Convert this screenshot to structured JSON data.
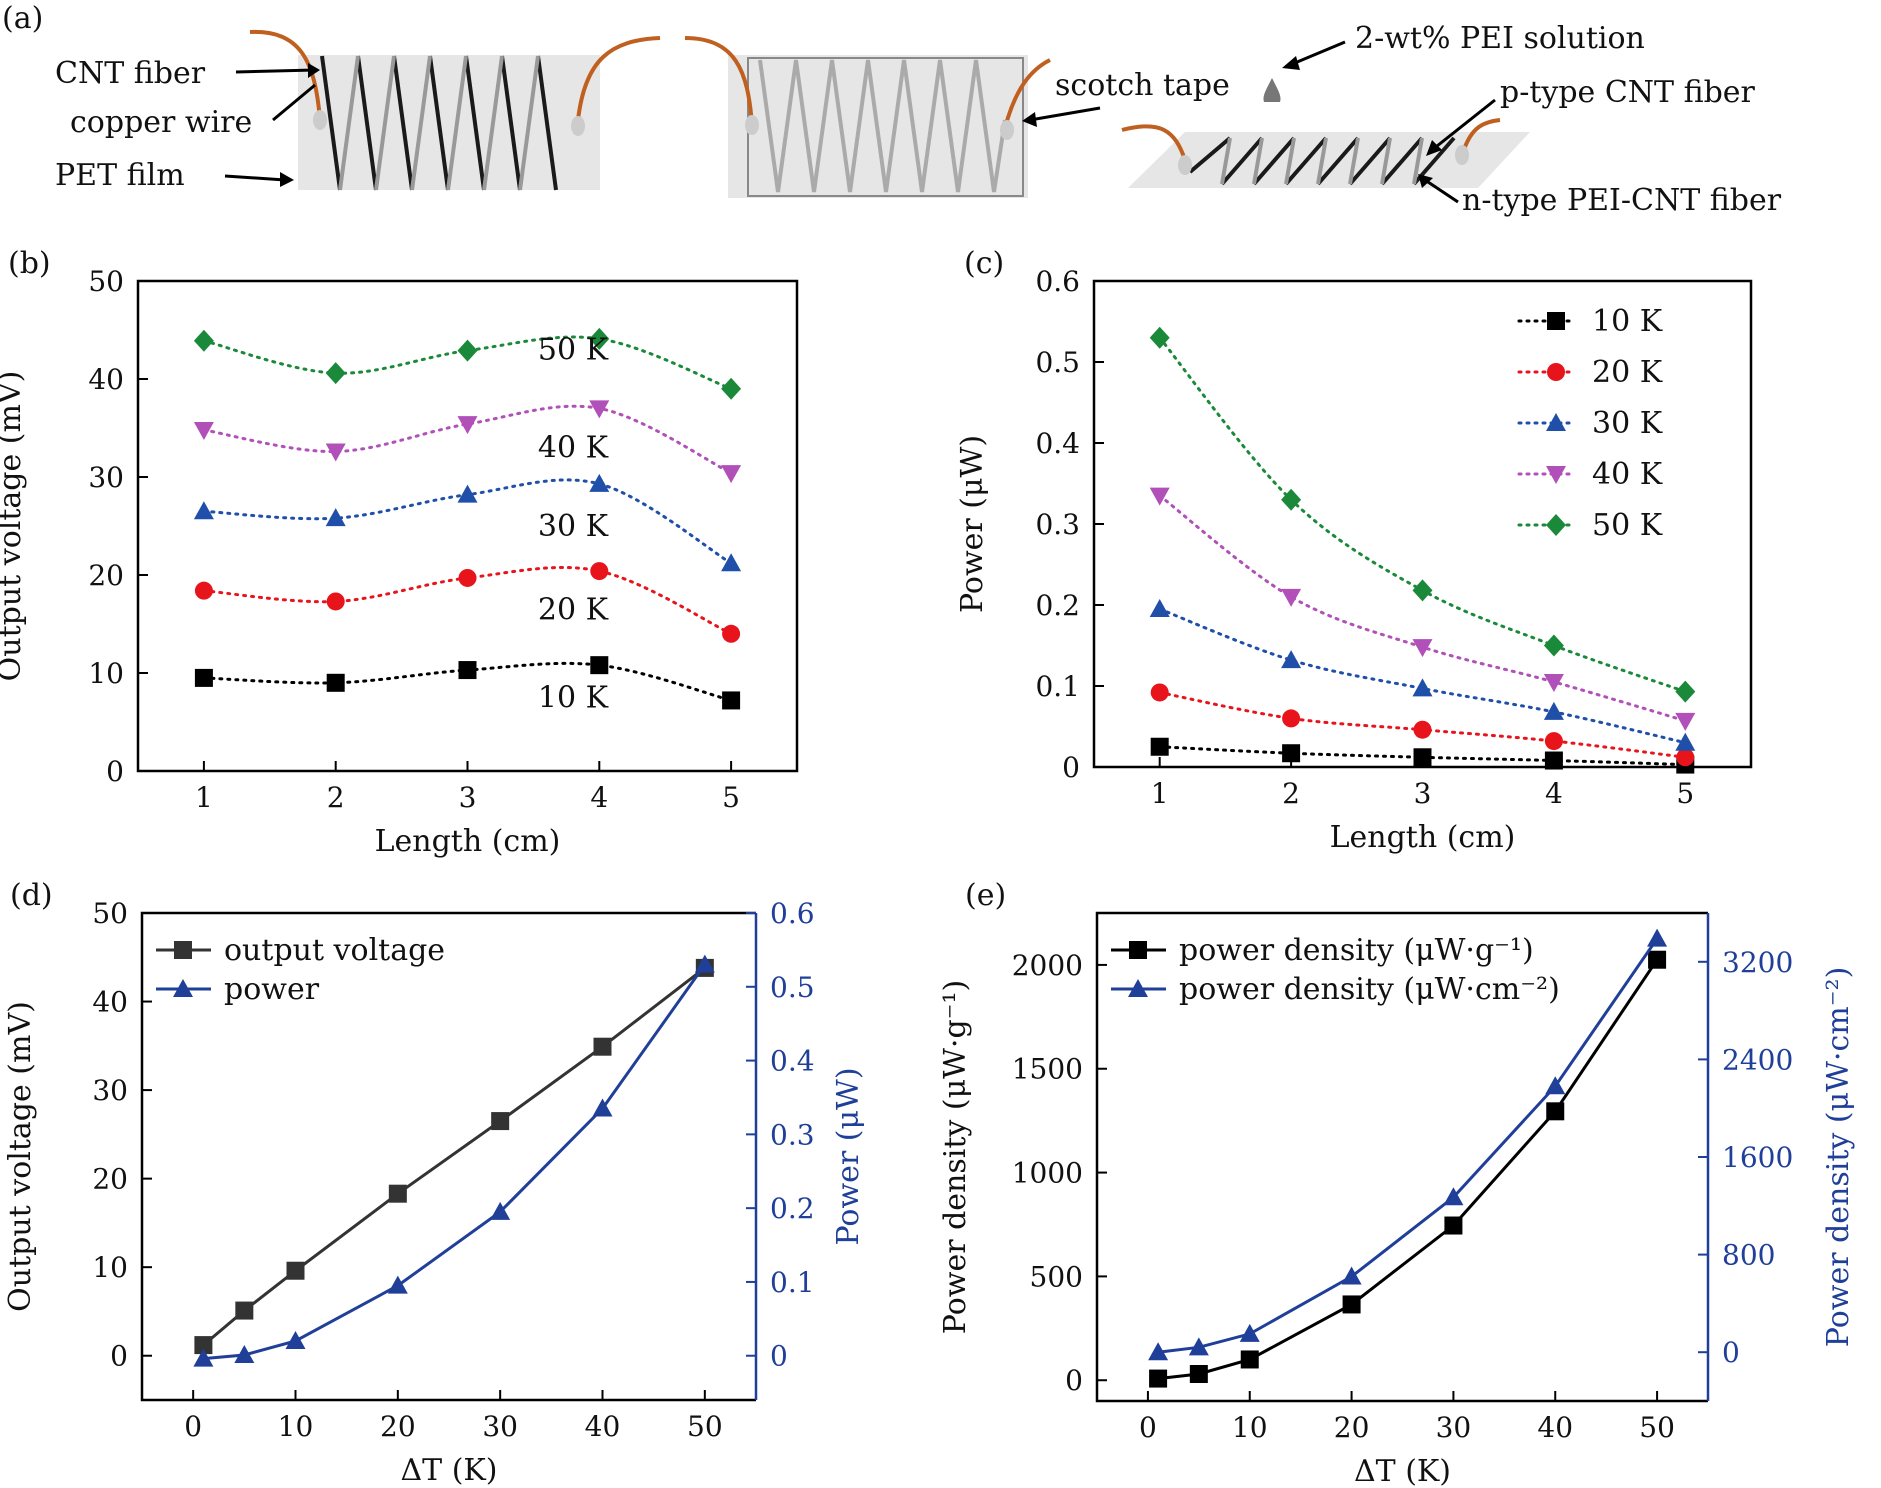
{
  "panel_a": {
    "label": "(a)",
    "annotations": {
      "cnt_fiber": "CNT fiber",
      "copper_wire": "copper wire",
      "pet_film": "PET film",
      "scotch_tape": "scotch tape",
      "pei_solution": "2-wt% PEI solution",
      "p_type": "p-type CNT fiber",
      "n_type": "n-type PEI-CNT fiber"
    }
  },
  "colors": {
    "10K": "#000000",
    "20K": "#e8141b",
    "30K": "#1f4fa8",
    "40K": "#b050b8",
    "50K": "#1a8a3a",
    "voltage_line": "#333333",
    "power_line": "#1f3f99"
  },
  "chart_data": [
    {
      "panel": "(b)",
      "type": "scatter",
      "title": "",
      "xlabel": "Length (cm)",
      "ylabel": "Output voltage (mV)",
      "xlim": [
        0.5,
        5.5
      ],
      "ylim": [
        0,
        50
      ],
      "xticks": [
        "1",
        "2",
        "3",
        "4",
        "5"
      ],
      "yticks": [
        "0",
        "10",
        "20",
        "30",
        "40",
        "50"
      ],
      "x": [
        1,
        2,
        3,
        4,
        5
      ],
      "series": [
        {
          "name": "10 K",
          "marker": "square",
          "color_key": "10K",
          "values": [
            9.5,
            9.0,
            10.3,
            10.8,
            7.2
          ]
        },
        {
          "name": "20 K",
          "marker": "circle",
          "color_key": "20K",
          "values": [
            18.4,
            17.3,
            19.7,
            20.4,
            14.0
          ]
        },
        {
          "name": "30 K",
          "marker": "triangle-up",
          "color_key": "30K",
          "values": [
            26.5,
            25.8,
            28.2,
            29.3,
            21.2
          ]
        },
        {
          "name": "40 K",
          "marker": "triangle-down",
          "color_key": "40K",
          "values": [
            34.8,
            32.6,
            35.4,
            37.0,
            30.4
          ]
        },
        {
          "name": "50 K",
          "marker": "diamond",
          "color_key": "50K",
          "values": [
            43.9,
            40.6,
            42.9,
            44.1,
            39.0
          ]
        }
      ],
      "curve_labels": [
        "50 K",
        "40 K",
        "30 K",
        "20 K",
        "10 K"
      ]
    },
    {
      "panel": "(c)",
      "type": "scatter",
      "title": "",
      "xlabel": "Length (cm)",
      "ylabel": "Power (μW)",
      "xlim": [
        0.5,
        5.5
      ],
      "ylim": [
        0,
        0.6
      ],
      "xticks": [
        "1",
        "2",
        "3",
        "4",
        "5"
      ],
      "yticks": [
        "0",
        "0.1",
        "0.2",
        "0.3",
        "0.4",
        "0.5",
        "0.6"
      ],
      "x": [
        1,
        2,
        3,
        4,
        5
      ],
      "legend_position": "top-right",
      "series": [
        {
          "name": "10 K",
          "marker": "square",
          "color_key": "10K",
          "values": [
            0.025,
            0.017,
            0.012,
            0.008,
            0.003
          ]
        },
        {
          "name": "20 K",
          "marker": "circle",
          "color_key": "20K",
          "values": [
            0.092,
            0.06,
            0.046,
            0.032,
            0.012
          ]
        },
        {
          "name": "30 K",
          "marker": "triangle-up",
          "color_key": "30K",
          "values": [
            0.195,
            0.132,
            0.097,
            0.068,
            0.03
          ]
        },
        {
          "name": "40 K",
          "marker": "triangle-down",
          "color_key": "40K",
          "values": [
            0.335,
            0.21,
            0.148,
            0.105,
            0.057
          ]
        },
        {
          "name": "50 K",
          "marker": "diamond",
          "color_key": "50K",
          "values": [
            0.53,
            0.33,
            0.218,
            0.15,
            0.093
          ]
        }
      ]
    },
    {
      "panel": "(d)",
      "type": "line",
      "title": "",
      "xlabel": "ΔT (K)",
      "ylabel_left": "Output  voltage (mV)",
      "ylabel_right": "Power (μW)",
      "xlim": [
        -5,
        55
      ],
      "ylim_left": [
        -5,
        50
      ],
      "ylim_right": [
        -0.06,
        0.6
      ],
      "xticks": [
        "0",
        "10",
        "20",
        "30",
        "40",
        "50"
      ],
      "yticks_left": [
        "0",
        "10",
        "20",
        "30",
        "40",
        "50"
      ],
      "yticks_right": [
        "0",
        "0.1",
        "0.2",
        "0.3",
        "0.4",
        "0.5",
        "0.6"
      ],
      "x": [
        1,
        5,
        10,
        20,
        30,
        40,
        50
      ],
      "legend_position": "top-left",
      "series": [
        {
          "name": "output   voltage",
          "axis": "left",
          "marker": "square",
          "color_key": "voltage_line",
          "values": [
            1.2,
            5.1,
            9.6,
            18.3,
            26.5,
            34.9,
            43.8
          ]
        },
        {
          "name": "power",
          "axis": "right",
          "marker": "triangle-up",
          "color_key": "power_line",
          "values": [
            -0.004,
            0.001,
            0.02,
            0.095,
            0.195,
            0.335,
            0.53
          ]
        }
      ]
    },
    {
      "panel": "(e)",
      "type": "line",
      "title": "",
      "xlabel": "ΔT (K)",
      "ylabel_left": "Power density (μW·g⁻¹)",
      "ylabel_right": "Power density (μW·cm⁻²)",
      "xlim": [
        -5,
        55
      ],
      "ylim_left": [
        -100,
        2250
      ],
      "ylim_right": [
        -400,
        3600
      ],
      "xticks": [
        "0",
        "10",
        "20",
        "30",
        "40",
        "50"
      ],
      "yticks_left": [
        "0",
        "500",
        "1000",
        "1500",
        "2000"
      ],
      "yticks_right": [
        "0",
        "800",
        "1600",
        "2400",
        "3200"
      ],
      "x": [
        1,
        5,
        10,
        20,
        30,
        40,
        50
      ],
      "legend_position": "top-left",
      "series": [
        {
          "name": "power density (μW·g⁻¹)",
          "axis": "left",
          "marker": "square",
          "color_key": "10K",
          "values": [
            8,
            30,
            100,
            365,
            745,
            1295,
            2025
          ]
        },
        {
          "name": "power density (μW·cm⁻²)",
          "axis": "right",
          "marker": "triangle-up",
          "color_key": "power_line",
          "values": [
            0,
            40,
            150,
            620,
            1270,
            2180,
            3390
          ]
        }
      ]
    }
  ]
}
